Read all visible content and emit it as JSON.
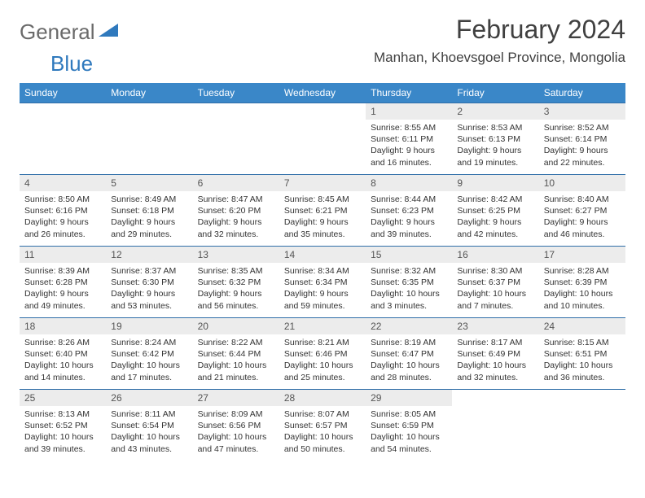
{
  "logo": {
    "text1": "General",
    "text2": "Blue",
    "color1": "#6a6a6a",
    "color2": "#2f79bd"
  },
  "title": "February 2024",
  "location": "Manhan, Khoevsgoel Province, Mongolia",
  "colors": {
    "header_bg": "#3a87c8",
    "header_text": "#ffffff",
    "daynum_bg": "#ececec",
    "row_border": "#2f6ea8"
  },
  "weekdays": [
    "Sunday",
    "Monday",
    "Tuesday",
    "Wednesday",
    "Thursday",
    "Friday",
    "Saturday"
  ],
  "weeks": [
    [
      null,
      null,
      null,
      null,
      {
        "n": "1",
        "sr": "8:55 AM",
        "ss": "6:11 PM",
        "dl": "9 hours and 16 minutes."
      },
      {
        "n": "2",
        "sr": "8:53 AM",
        "ss": "6:13 PM",
        "dl": "9 hours and 19 minutes."
      },
      {
        "n": "3",
        "sr": "8:52 AM",
        "ss": "6:14 PM",
        "dl": "9 hours and 22 minutes."
      }
    ],
    [
      {
        "n": "4",
        "sr": "8:50 AM",
        "ss": "6:16 PM",
        "dl": "9 hours and 26 minutes."
      },
      {
        "n": "5",
        "sr": "8:49 AM",
        "ss": "6:18 PM",
        "dl": "9 hours and 29 minutes."
      },
      {
        "n": "6",
        "sr": "8:47 AM",
        "ss": "6:20 PM",
        "dl": "9 hours and 32 minutes."
      },
      {
        "n": "7",
        "sr": "8:45 AM",
        "ss": "6:21 PM",
        "dl": "9 hours and 35 minutes."
      },
      {
        "n": "8",
        "sr": "8:44 AM",
        "ss": "6:23 PM",
        "dl": "9 hours and 39 minutes."
      },
      {
        "n": "9",
        "sr": "8:42 AM",
        "ss": "6:25 PM",
        "dl": "9 hours and 42 minutes."
      },
      {
        "n": "10",
        "sr": "8:40 AM",
        "ss": "6:27 PM",
        "dl": "9 hours and 46 minutes."
      }
    ],
    [
      {
        "n": "11",
        "sr": "8:39 AM",
        "ss": "6:28 PM",
        "dl": "9 hours and 49 minutes."
      },
      {
        "n": "12",
        "sr": "8:37 AM",
        "ss": "6:30 PM",
        "dl": "9 hours and 53 minutes."
      },
      {
        "n": "13",
        "sr": "8:35 AM",
        "ss": "6:32 PM",
        "dl": "9 hours and 56 minutes."
      },
      {
        "n": "14",
        "sr": "8:34 AM",
        "ss": "6:34 PM",
        "dl": "9 hours and 59 minutes."
      },
      {
        "n": "15",
        "sr": "8:32 AM",
        "ss": "6:35 PM",
        "dl": "10 hours and 3 minutes."
      },
      {
        "n": "16",
        "sr": "8:30 AM",
        "ss": "6:37 PM",
        "dl": "10 hours and 7 minutes."
      },
      {
        "n": "17",
        "sr": "8:28 AM",
        "ss": "6:39 PM",
        "dl": "10 hours and 10 minutes."
      }
    ],
    [
      {
        "n": "18",
        "sr": "8:26 AM",
        "ss": "6:40 PM",
        "dl": "10 hours and 14 minutes."
      },
      {
        "n": "19",
        "sr": "8:24 AM",
        "ss": "6:42 PM",
        "dl": "10 hours and 17 minutes."
      },
      {
        "n": "20",
        "sr": "8:22 AM",
        "ss": "6:44 PM",
        "dl": "10 hours and 21 minutes."
      },
      {
        "n": "21",
        "sr": "8:21 AM",
        "ss": "6:46 PM",
        "dl": "10 hours and 25 minutes."
      },
      {
        "n": "22",
        "sr": "8:19 AM",
        "ss": "6:47 PM",
        "dl": "10 hours and 28 minutes."
      },
      {
        "n": "23",
        "sr": "8:17 AM",
        "ss": "6:49 PM",
        "dl": "10 hours and 32 minutes."
      },
      {
        "n": "24",
        "sr": "8:15 AM",
        "ss": "6:51 PM",
        "dl": "10 hours and 36 minutes."
      }
    ],
    [
      {
        "n": "25",
        "sr": "8:13 AM",
        "ss": "6:52 PM",
        "dl": "10 hours and 39 minutes."
      },
      {
        "n": "26",
        "sr": "8:11 AM",
        "ss": "6:54 PM",
        "dl": "10 hours and 43 minutes."
      },
      {
        "n": "27",
        "sr": "8:09 AM",
        "ss": "6:56 PM",
        "dl": "10 hours and 47 minutes."
      },
      {
        "n": "28",
        "sr": "8:07 AM",
        "ss": "6:57 PM",
        "dl": "10 hours and 50 minutes."
      },
      {
        "n": "29",
        "sr": "8:05 AM",
        "ss": "6:59 PM",
        "dl": "10 hours and 54 minutes."
      },
      null,
      null
    ]
  ],
  "labels": {
    "sunrise": "Sunrise:",
    "sunset": "Sunset:",
    "daylight": "Daylight:"
  }
}
